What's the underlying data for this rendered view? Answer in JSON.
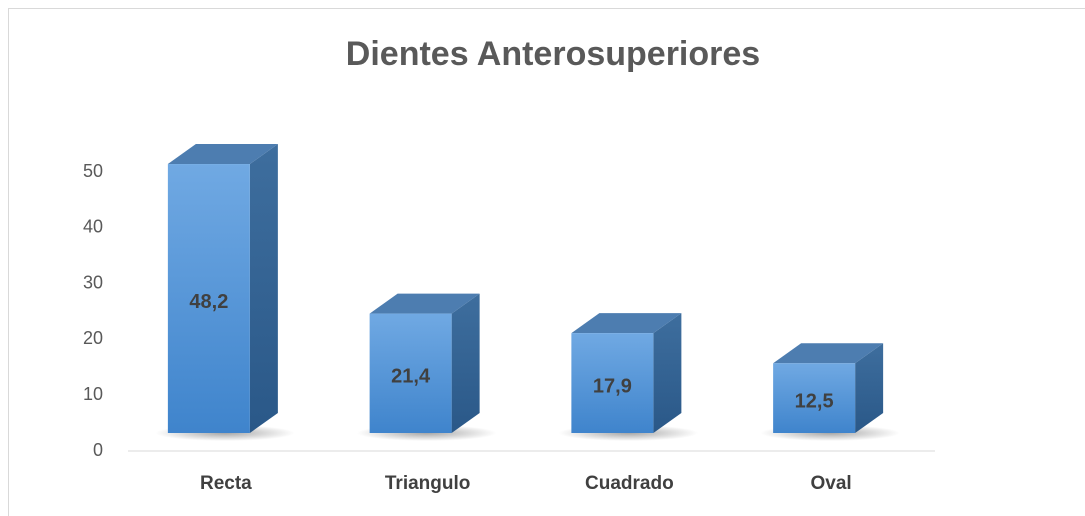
{
  "chart_data": {
    "type": "bar",
    "title": "Dientes Anterosuperiores",
    "categories": [
      "Recta",
      "Triangulo",
      "Cuadrado",
      "Oval"
    ],
    "values": [
      48.2,
      21.4,
      17.9,
      12.5
    ],
    "value_labels": [
      "48,2",
      "21,4",
      "17,9",
      "12,5"
    ],
    "color": "#5b9bd5",
    "ylim": [
      0,
      50
    ],
    "yticks": [
      0,
      10,
      20,
      30,
      40,
      50
    ]
  }
}
